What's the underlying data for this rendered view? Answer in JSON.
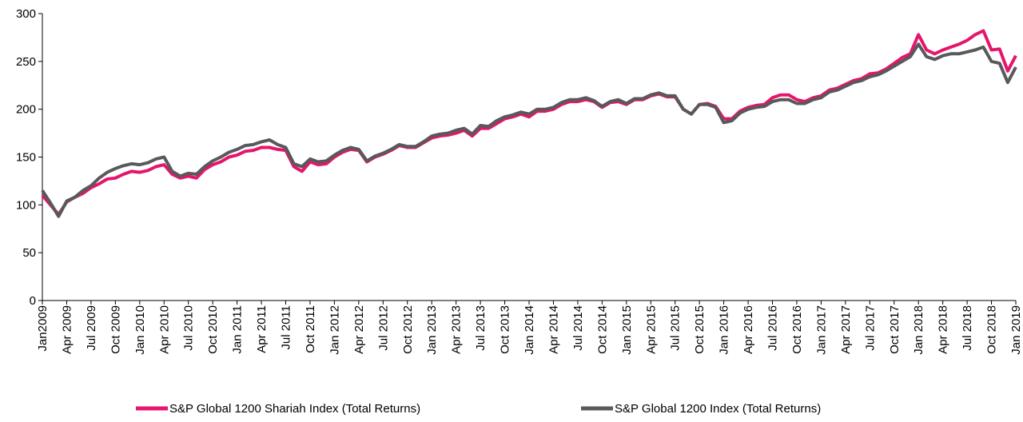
{
  "chart_data": {
    "type": "line",
    "categories": [
      "Jan2009",
      null,
      null,
      "Apr 2009",
      null,
      null,
      "Jul 2009",
      null,
      null,
      "Oct 2009",
      null,
      null,
      "Jan 2010",
      null,
      null,
      "Apr 2010",
      null,
      null,
      "Jul 2010",
      null,
      null,
      "Oct 2010",
      null,
      null,
      "Jan 2011",
      null,
      null,
      "Apr 2011",
      null,
      null,
      "Jul 2011",
      null,
      null,
      "Oct 2011",
      null,
      null,
      "Jan 2012",
      null,
      null,
      "Apr 2012",
      null,
      null,
      "Jul 2012",
      null,
      null,
      "Oct 2012",
      null,
      null,
      "Jan 2013",
      null,
      null,
      "Apr 2013",
      null,
      null,
      "Jul 2013",
      null,
      null,
      "Oct 2013",
      null,
      null,
      "Jan 2014",
      null,
      null,
      "Apr 2014",
      null,
      null,
      "Jul 2014",
      null,
      null,
      "Oct 2014",
      null,
      null,
      "Jan 2015",
      null,
      null,
      "Apr 2015",
      null,
      null,
      "Jul 2015",
      null,
      null,
      "Oct 2015",
      null,
      null,
      "Jan 2016",
      null,
      null,
      "Apr 2016",
      null,
      null,
      "Jul 2016",
      null,
      null,
      "Oct 2016",
      null,
      null,
      "Jan 2017",
      null,
      null,
      "Apr 2017",
      null,
      null,
      "Jul 2017",
      null,
      null,
      "Oct 2017",
      null,
      null,
      "Jan 2018",
      null,
      null,
      "Apr 2018",
      null,
      null,
      "Jul 2018",
      null,
      null,
      "Oct 2018",
      null,
      null,
      "Jan 2019"
    ],
    "series": [
      {
        "name": "S&P Global 1200 Shariah Index (Total Returns)",
        "color": "#e5156b",
        "values": [
          110,
          100,
          90,
          103,
          108,
          112,
          118,
          122,
          127,
          128,
          132,
          135,
          134,
          136,
          140,
          142,
          132,
          128,
          130,
          128,
          137,
          142,
          145,
          150,
          152,
          156,
          157,
          160,
          160,
          158,
          157,
          140,
          135,
          145,
          142,
          143,
          150,
          155,
          158,
          157,
          145,
          150,
          153,
          157,
          162,
          160,
          160,
          165,
          170,
          172,
          173,
          175,
          178,
          172,
          180,
          180,
          185,
          190,
          192,
          195,
          192,
          198,
          198,
          200,
          205,
          208,
          208,
          210,
          208,
          202,
          207,
          208,
          205,
          210,
          210,
          214,
          216,
          213,
          213,
          200,
          195,
          205,
          206,
          203,
          190,
          190,
          198,
          202,
          204,
          205,
          212,
          215,
          215,
          210,
          208,
          212,
          214,
          220,
          222,
          226,
          230,
          232,
          237,
          238,
          242,
          248,
          254,
          258,
          278,
          262,
          258,
          262,
          265,
          268,
          272,
          278,
          282,
          262,
          263,
          240,
          256
        ]
      },
      {
        "name": "S&P Global 1200 Index (Total Returns)",
        "color": "#58595b",
        "values": [
          115,
          102,
          88,
          104,
          108,
          115,
          120,
          128,
          134,
          138,
          141,
          143,
          142,
          144,
          148,
          150,
          135,
          130,
          133,
          132,
          140,
          146,
          150,
          155,
          158,
          162,
          163,
          166,
          168,
          163,
          160,
          143,
          140,
          148,
          145,
          146,
          152,
          157,
          160,
          158,
          146,
          151,
          154,
          158,
          163,
          161,
          161,
          166,
          172,
          174,
          175,
          178,
          180,
          174,
          183,
          182,
          188,
          192,
          194,
          197,
          195,
          200,
          200,
          202,
          207,
          210,
          210,
          212,
          209,
          203,
          208,
          210,
          206,
          211,
          211,
          215,
          217,
          214,
          214,
          200,
          195,
          205,
          205,
          202,
          186,
          188,
          196,
          200,
          202,
          203,
          208,
          210,
          210,
          206,
          206,
          210,
          212,
          218,
          220,
          224,
          228,
          230,
          234,
          236,
          240,
          245,
          250,
          255,
          268,
          255,
          252,
          256,
          258,
          258,
          260,
          262,
          265,
          250,
          248,
          228,
          244
        ]
      }
    ],
    "ylim": [
      0,
      300
    ],
    "yticks": [
      0,
      50,
      100,
      150,
      200,
      250,
      300
    ],
    "grid": false,
    "legend": "bottom"
  }
}
